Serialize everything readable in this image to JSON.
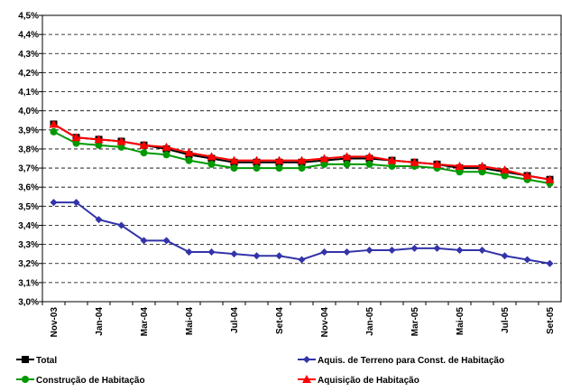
{
  "chart_data": {
    "type": "line",
    "categories": [
      "Nov-03",
      null,
      "Jan-04",
      null,
      "Mar-04",
      null,
      "Mai-04",
      null,
      "Jul-04",
      null,
      "Set-04",
      null,
      "Nov-04",
      null,
      "Jan-05",
      null,
      "Mar-05",
      null,
      "Mai-05",
      null,
      "Jul-05",
      null,
      "Set-05"
    ],
    "ylim": [
      3.0,
      4.5
    ],
    "yticks": [
      {
        "value": 3.0,
        "label": "3,0%"
      },
      {
        "value": 3.1,
        "label": "3,1%"
      },
      {
        "value": 3.2,
        "label": "3,2%"
      },
      {
        "value": 3.3,
        "label": "3,3%"
      },
      {
        "value": 3.4,
        "label": "3,4%"
      },
      {
        "value": 3.5,
        "label": "3,5%"
      },
      {
        "value": 3.6,
        "label": "3,6%"
      },
      {
        "value": 3.7,
        "label": "3,7%"
      },
      {
        "value": 3.8,
        "label": "3,8%"
      },
      {
        "value": 3.9,
        "label": "3,9%"
      },
      {
        "value": 4.0,
        "label": "4,0%"
      },
      {
        "value": 4.1,
        "label": "4,1%"
      },
      {
        "value": 4.2,
        "label": "4,2%"
      },
      {
        "value": 4.3,
        "label": "4,3%"
      },
      {
        "value": 4.4,
        "label": "4,4%"
      },
      {
        "value": 4.5,
        "label": "4,5%"
      }
    ],
    "grid": true,
    "series": [
      {
        "name": "Total",
        "color": "#000000",
        "marker": "square",
        "values": [
          3.93,
          3.86,
          3.85,
          3.84,
          3.82,
          3.8,
          3.77,
          3.75,
          3.73,
          3.73,
          3.73,
          3.73,
          3.74,
          3.75,
          3.75,
          3.74,
          3.73,
          3.72,
          3.7,
          3.7,
          3.68,
          3.66,
          3.64
        ]
      },
      {
        "name": "Aquis. de Terreno para Const. de Habitação",
        "color": "#3333aa",
        "marker": "diamond",
        "values": [
          3.52,
          3.52,
          3.43,
          3.4,
          3.32,
          3.32,
          3.26,
          3.26,
          3.25,
          3.24,
          3.24,
          3.22,
          3.26,
          3.26,
          3.27,
          3.27,
          3.28,
          3.28,
          3.27,
          3.27,
          3.24,
          3.22,
          3.2
        ]
      },
      {
        "name": "Construção de Habitação",
        "color": "#009900",
        "marker": "circle",
        "values": [
          3.89,
          3.83,
          3.82,
          3.81,
          3.78,
          3.77,
          3.74,
          3.72,
          3.7,
          3.7,
          3.7,
          3.7,
          3.72,
          3.72,
          3.72,
          3.71,
          3.71,
          3.7,
          3.68,
          3.68,
          3.66,
          3.64,
          3.62
        ]
      },
      {
        "name": "Aquisição de Habitação",
        "color": "#ff0000",
        "marker": "triangle",
        "values": [
          3.93,
          3.86,
          3.85,
          3.84,
          3.82,
          3.81,
          3.78,
          3.76,
          3.74,
          3.74,
          3.74,
          3.74,
          3.75,
          3.76,
          3.76,
          3.74,
          3.73,
          3.72,
          3.71,
          3.71,
          3.69,
          3.66,
          3.64
        ]
      }
    ]
  }
}
